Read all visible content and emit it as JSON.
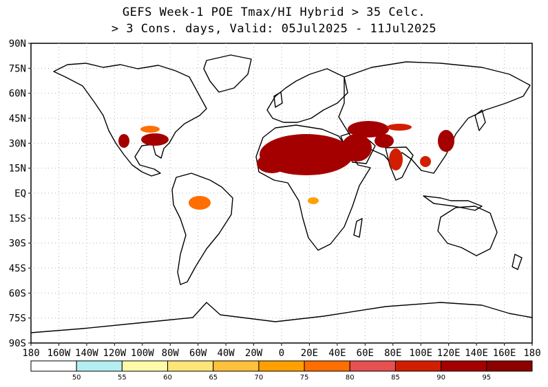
{
  "title": {
    "line1": "GEFS Week-1 POE Tmax/HI Hybrid > 35 Celc.",
    "line2": "> 3 Cons. days, Valid: 05Jul2025 - 11Jul2025"
  },
  "map": {
    "lat_labels": [
      "90N",
      "75N",
      "60N",
      "45N",
      "30N",
      "15N",
      "EQ",
      "15S",
      "30S",
      "45S",
      "60S",
      "75S",
      "90S"
    ],
    "lon_labels": [
      "180",
      "160W",
      "140W",
      "120W",
      "100W",
      "80W",
      "60W",
      "40W",
      "20W",
      "0",
      "20E",
      "40E",
      "60E",
      "80E",
      "100E",
      "120E",
      "140E",
      "160E",
      "180"
    ],
    "grid": "dotted",
    "colors": {
      "land_outline": "#000000",
      "background": "#ffffff"
    }
  },
  "legend": {
    "ticks": [
      "50",
      "55",
      "60",
      "65",
      "70",
      "75",
      "80",
      "85",
      "90",
      "95"
    ],
    "colors": [
      "#ffffff",
      "#b4eef0",
      "#fffaaa",
      "#ffe578",
      "#ffc03c",
      "#ffa000",
      "#ff6e00",
      "#e65050",
      "#d21e00",
      "#a50000",
      "#8c0000"
    ]
  }
}
